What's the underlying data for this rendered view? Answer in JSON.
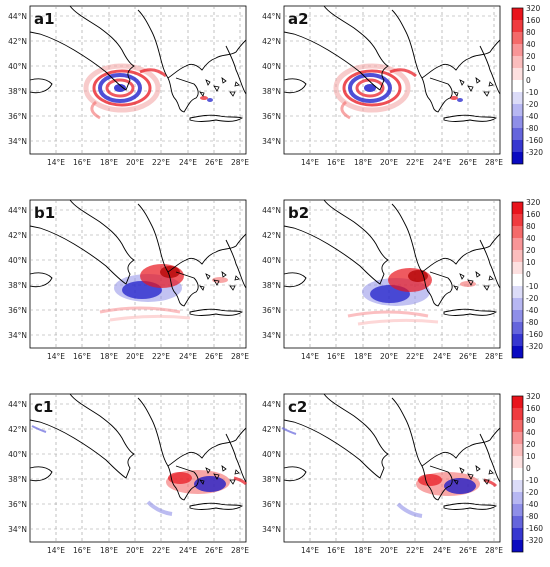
{
  "panels": [
    {
      "label": "a1"
    },
    {
      "label": "a2"
    },
    {
      "label": "b1"
    },
    {
      "label": "b2"
    },
    {
      "label": "c1"
    },
    {
      "label": "c2"
    }
  ],
  "lat_ticks": [
    "44°N",
    "42°N",
    "40°N",
    "38°N",
    "36°N",
    "34°N"
  ],
  "lon_ticks": [
    "14°E",
    "16°E",
    "18°E",
    "20°E",
    "22°E",
    "24°E",
    "26°E",
    "28°E"
  ],
  "colorbar": {
    "labels": [
      "320",
      "160",
      "80",
      "40",
      "20",
      "10",
      "0",
      "-10",
      "-20",
      "-40",
      "-80",
      "-160",
      "-320"
    ],
    "colors": [
      "#e8141c",
      "#ef3b3f",
      "#f46a6a",
      "#f89597",
      "#fbbdbd",
      "#fde0e0",
      "#ffffff",
      "#dcdcf8",
      "#b7b7f2",
      "#8f8fe8",
      "#6565dc",
      "#3737d0",
      "#0a0ac0"
    ]
  },
  "colors": {
    "positive": "#e8141c",
    "negative": "#1414c8",
    "coast": "#000000",
    "grid": "#9a9a9a"
  }
}
